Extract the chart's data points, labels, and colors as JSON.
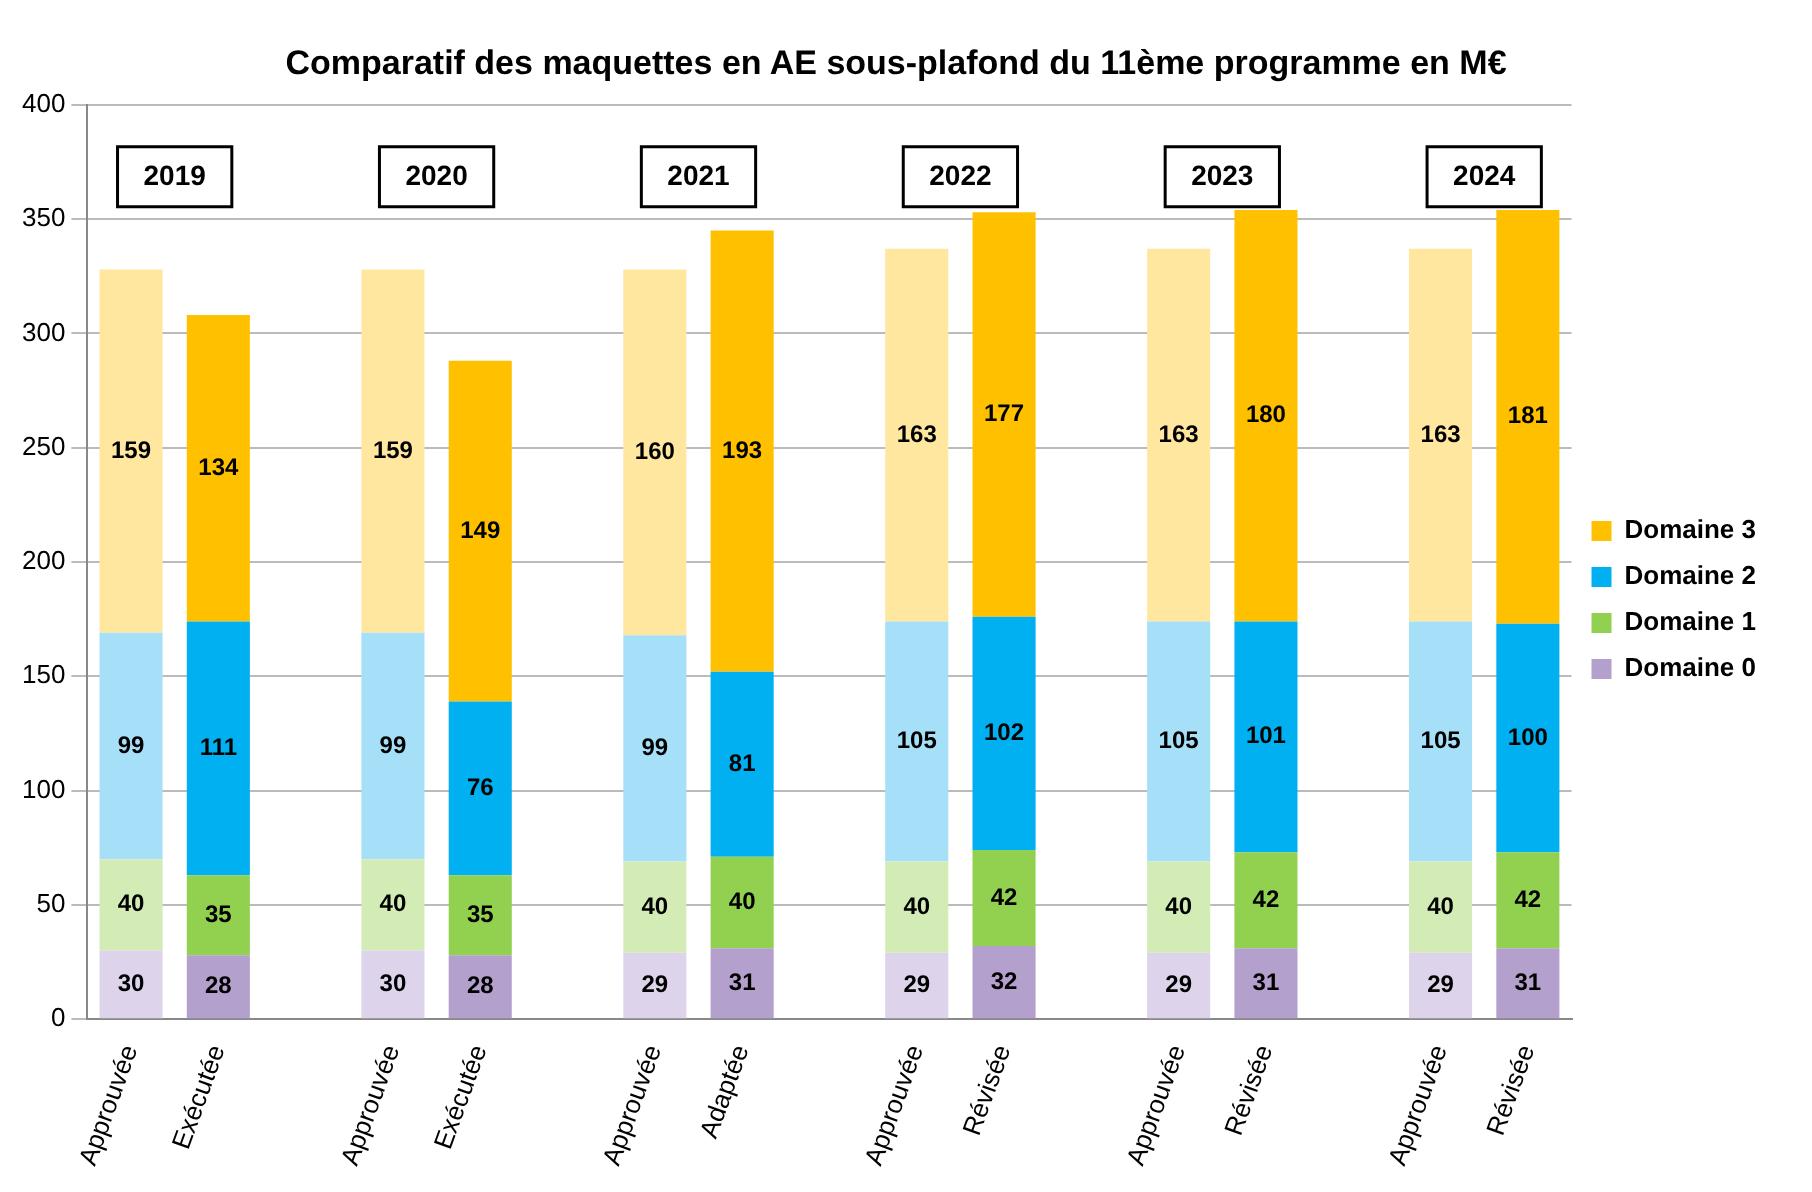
{
  "chart_data": {
    "type": "bar",
    "title": "Comparatif des maquettes en AE sous-plafond du 11ème programme en M€",
    "categories": [
      "Approuvée",
      "Exécutée",
      null,
      "Approuvée",
      "Exécutée",
      null,
      "Approuvée",
      "Adaptée",
      null,
      "Approuvée",
      "Révisée",
      null,
      "Approuvée",
      "Révisée",
      null,
      "Approuvée",
      "Révisée"
    ],
    "series": [
      {
        "name": "Domaine 0",
        "color": "#b4a0cc",
        "colors": [
          "#ddd3ea",
          "#b4a0cc",
          null,
          "#ddd3ea",
          "#b4a0cc",
          null,
          "#ddd3ea",
          "#b4a0cc",
          null,
          "#ddd3ea",
          "#b4a0cc",
          null,
          "#ddd3ea",
          "#b4a0cc",
          null,
          "#ddd3ea",
          "#b4a0cc"
        ],
        "values": [
          30,
          28,
          null,
          30,
          28,
          null,
          29,
          31,
          null,
          29,
          32,
          null,
          29,
          31,
          null,
          29,
          31
        ]
      },
      {
        "name": "Domaine 1",
        "color": "#92d050",
        "colors": [
          "#d3ecb6",
          "#92d050",
          null,
          "#d3ecb6",
          "#92d050",
          null,
          "#d3ecb6",
          "#92d050",
          null,
          "#d3ecb6",
          "#92d050",
          null,
          "#d3ecb6",
          "#92d050",
          null,
          "#d3ecb6",
          "#92d050"
        ],
        "values": [
          40,
          35,
          null,
          40,
          35,
          null,
          40,
          40,
          null,
          40,
          42,
          null,
          40,
          42,
          null,
          40,
          42
        ]
      },
      {
        "name": "Domaine 2",
        "color": "#00b0f0",
        "colors": [
          "#a6e0f8",
          "#00b0f0",
          null,
          "#a6e0f8",
          "#00b0f0",
          null,
          "#a6e0f8",
          "#00b0f0",
          null,
          "#a6e0f8",
          "#00b0f0",
          null,
          "#a6e0f8",
          "#00b0f0",
          null,
          "#a6e0f8",
          "#00b0f0"
        ],
        "values": [
          99,
          111,
          null,
          99,
          76,
          null,
          99,
          81,
          null,
          105,
          102,
          null,
          105,
          101,
          null,
          105,
          100
        ]
      },
      {
        "name": "Domaine 3",
        "color": "#ffc000",
        "colors": [
          "#ffe7a0",
          "#ffc000",
          null,
          "#ffe7a0",
          "#ffc000",
          null,
          "#ffe7a0",
          "#ffc000",
          null,
          "#ffe7a0",
          "#ffc000",
          null,
          "#ffe7a0",
          "#ffc000",
          null,
          "#ffe7a0",
          "#ffc000"
        ],
        "values": [
          159,
          134,
          null,
          159,
          149,
          null,
          160,
          193,
          null,
          163,
          177,
          null,
          163,
          180,
          null,
          163,
          181
        ]
      }
    ],
    "annotations": [
      "2019",
      "2020",
      "2021",
      "2022",
      "2023",
      "2024"
    ],
    "stacked": true,
    "data_labels": true,
    "ylim": [
      0,
      400
    ],
    "yticks": [
      0,
      50,
      100,
      150,
      200,
      250,
      300,
      350,
      400
    ],
    "grid": "y",
    "legend": "right"
  }
}
